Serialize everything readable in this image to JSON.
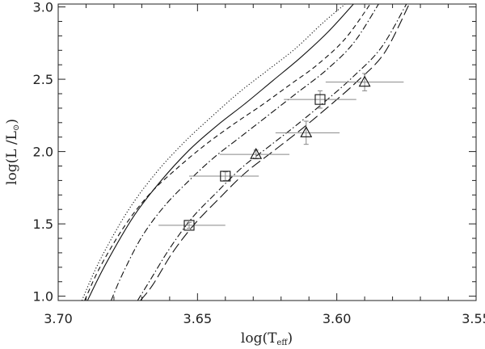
{
  "chart_data": {
    "type": "scatter",
    "xlabel": {
      "main": "log(T",
      "sub": "eff",
      "close": ")"
    },
    "ylabel": {
      "main": "log(L /L",
      "sub": "⊙",
      "close": ")"
    },
    "xlim": [
      3.7,
      3.55
    ],
    "ylim": [
      0.97,
      3.02
    ],
    "x_ticks": [
      3.7,
      3.65,
      3.6,
      3.55
    ],
    "x_tick_labels": [
      "3.70",
      "3.65",
      "3.60",
      "3.55"
    ],
    "y_ticks": [
      1.0,
      1.5,
      2.0,
      2.5,
      3.0
    ],
    "y_tick_labels": [
      "1.0",
      "1.5",
      "2.0",
      "2.5",
      "3.0"
    ],
    "grid": false,
    "curves": [
      {
        "style": "dotted",
        "x": [
          3.6915,
          3.685,
          3.675,
          3.665,
          3.655,
          3.645,
          3.635,
          3.625,
          3.615,
          3.605,
          3.597
        ],
        "y": [
          0.97,
          1.25,
          1.59,
          1.85,
          2.06,
          2.24,
          2.41,
          2.56,
          2.71,
          2.89,
          3.02
        ]
      },
      {
        "style": "solid",
        "x": [
          3.6895,
          3.683,
          3.673,
          3.663,
          3.653,
          3.643,
          3.633,
          3.623,
          3.613,
          3.603,
          3.594
        ],
        "y": [
          0.97,
          1.22,
          1.55,
          1.8,
          2.01,
          2.18,
          2.33,
          2.49,
          2.65,
          2.83,
          3.02
        ]
      },
      {
        "style": "dashed",
        "x": [
          3.6905,
          3.685,
          3.676,
          3.667,
          3.657,
          3.647,
          3.637,
          3.627,
          3.617,
          3.607,
          3.597,
          3.588
        ],
        "y": [
          0.97,
          1.2,
          1.49,
          1.71,
          1.89,
          2.05,
          2.19,
          2.32,
          2.46,
          2.6,
          2.78,
          3.02
        ]
      },
      {
        "style": "dashdot",
        "x": [
          3.681,
          3.677,
          3.67,
          3.662,
          3.653,
          3.644,
          3.634,
          3.624,
          3.614,
          3.604,
          3.594,
          3.585
        ],
        "y": [
          0.97,
          1.15,
          1.41,
          1.62,
          1.8,
          1.96,
          2.11,
          2.26,
          2.41,
          2.56,
          2.75,
          3.02
        ]
      },
      {
        "style": "dashdot",
        "x": [
          3.6715,
          3.667,
          3.66,
          3.652,
          3.643,
          3.634,
          3.624,
          3.614,
          3.604,
          3.594,
          3.584,
          3.575
        ],
        "y": [
          0.97,
          1.11,
          1.33,
          1.54,
          1.72,
          1.89,
          2.04,
          2.19,
          2.35,
          2.52,
          2.72,
          3.02
        ]
      },
      {
        "style": "longdash",
        "x": [
          3.6705,
          3.666,
          3.659,
          3.651,
          3.642,
          3.633,
          3.623,
          3.613,
          3.603,
          3.593,
          3.583,
          3.574
        ],
        "y": [
          0.97,
          1.08,
          1.3,
          1.5,
          1.68,
          1.85,
          2.0,
          2.15,
          2.31,
          2.48,
          2.68,
          3.02
        ]
      }
    ],
    "points": [
      {
        "marker": "square",
        "x": 3.653,
        "y": 1.49,
        "xerr_low": 3.664,
        "xerr_high": 3.64,
        "yerr": 0.02
      },
      {
        "marker": "square",
        "x": 3.64,
        "y": 1.83,
        "xerr_low": 3.653,
        "xerr_high": 3.628,
        "yerr": 0.03
      },
      {
        "marker": "triangle",
        "x": 3.629,
        "y": 1.98,
        "xerr_low": 3.642,
        "xerr_high": 3.617,
        "yerr": 0.03
      },
      {
        "marker": "triangle",
        "x": 3.611,
        "y": 2.13,
        "xerr_low": 3.622,
        "xerr_high": 3.599,
        "yerr": 0.08
      },
      {
        "marker": "square",
        "x": 3.606,
        "y": 2.36,
        "xerr_low": 3.619,
        "xerr_high": 3.593,
        "yerr": 0.06
      },
      {
        "marker": "triangle",
        "x": 3.59,
        "y": 2.48,
        "xerr_low": 3.604,
        "xerr_high": 3.576,
        "yerr": 0.06
      }
    ]
  }
}
